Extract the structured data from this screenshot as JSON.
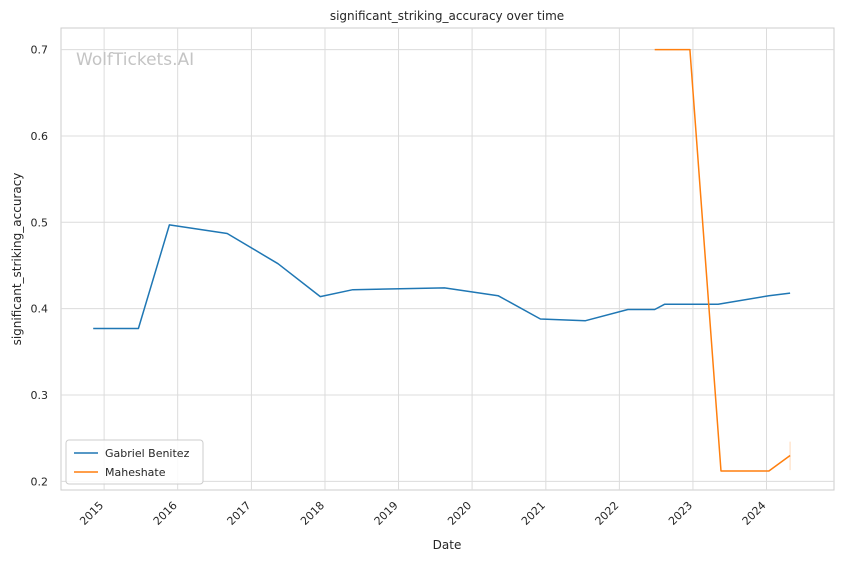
{
  "chart_data": {
    "type": "line",
    "title": "significant_striking_accuracy over time",
    "xlabel": "Date",
    "ylabel": "significant_striking_accuracy",
    "watermark": "WolfTickets.AI",
    "xlim": [
      "2014-06-01",
      "2024-12-01"
    ],
    "ylim": [
      0.19,
      0.725
    ],
    "x_ticks": [
      {
        "date": "2015-01-01",
        "label": "2015"
      },
      {
        "date": "2016-01-01",
        "label": "2016"
      },
      {
        "date": "2017-01-01",
        "label": "2017"
      },
      {
        "date": "2018-01-01",
        "label": "2018"
      },
      {
        "date": "2019-01-01",
        "label": "2019"
      },
      {
        "date": "2020-01-01",
        "label": "2020"
      },
      {
        "date": "2021-01-01",
        "label": "2021"
      },
      {
        "date": "2022-01-01",
        "label": "2022"
      },
      {
        "date": "2023-01-01",
        "label": "2023"
      },
      {
        "date": "2024-01-01",
        "label": "2024"
      }
    ],
    "y_ticks": [
      {
        "value": 0.2,
        "label": "0.2"
      },
      {
        "value": 0.3,
        "label": "0.3"
      },
      {
        "value": 0.4,
        "label": "0.4"
      },
      {
        "value": 0.5,
        "label": "0.5"
      },
      {
        "value": 0.6,
        "label": "0.6"
      },
      {
        "value": 0.7,
        "label": "0.7"
      }
    ],
    "grid": true,
    "legend_position": "lower-left",
    "series": [
      {
        "name": "Gabriel Benitez",
        "color": "#1f77b4",
        "points": [
          {
            "x": "2014-11-08",
            "y": 0.377
          },
          {
            "x": "2015-06-20",
            "y": 0.377
          },
          {
            "x": "2015-11-21",
            "y": 0.497
          },
          {
            "x": "2016-09-03",
            "y": 0.487
          },
          {
            "x": "2017-05-13",
            "y": 0.452
          },
          {
            "x": "2017-12-09",
            "y": 0.414
          },
          {
            "x": "2018-05-19",
            "y": 0.422
          },
          {
            "x": "2019-08-17",
            "y": 0.424
          },
          {
            "x": "2020-05-09",
            "y": 0.415
          },
          {
            "x": "2020-12-05",
            "y": 0.388
          },
          {
            "x": "2021-07-17",
            "y": 0.386
          },
          {
            "x": "2022-02-12",
            "y": 0.399
          },
          {
            "x": "2022-06-25",
            "y": 0.399
          },
          {
            "x": "2022-08-13",
            "y": 0.405
          },
          {
            "x": "2023-05-06",
            "y": 0.405
          },
          {
            "x": "2024-01-13",
            "y": 0.415
          },
          {
            "x": "2024-04-27",
            "y": 0.418
          }
        ]
      },
      {
        "name": "Maheshate",
        "color": "#ff7f0e",
        "points": [
          {
            "x": "2022-06-25",
            "y": 0.7
          },
          {
            "x": "2022-12-17",
            "y": 0.7
          },
          {
            "x": "2023-05-20",
            "y": 0.212
          },
          {
            "x": "2024-01-13",
            "y": 0.212
          },
          {
            "x": "2024-04-27",
            "y": 0.23
          }
        ],
        "error_bar": {
          "x": "2024-04-27",
          "low": 0.213,
          "high": 0.246
        }
      }
    ]
  }
}
